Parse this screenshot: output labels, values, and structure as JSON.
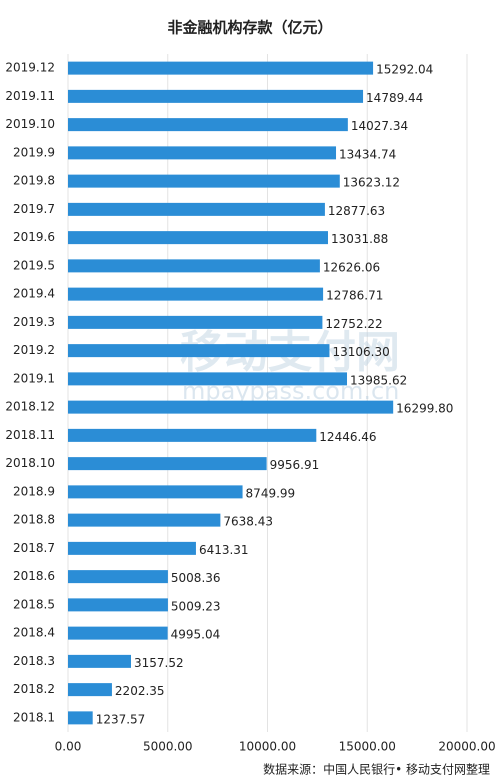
{
  "chart_data": {
    "type": "hbar",
    "title": "非金融机构存款（亿元）",
    "source": "数据来源：中国人民银行• 移动支付网整理",
    "watermark": [
      "移动支付网",
      "mpaypass.com.cn"
    ],
    "categories": [
      "2019.12",
      "2019.11",
      "2019.10",
      "2019.9",
      "2019.8",
      "2019.7",
      "2019.6",
      "2019.5",
      "2019.4",
      "2019.3",
      "2019.2",
      "2019.1",
      "2018.12",
      "2018.11",
      "2018.10",
      "2018.9",
      "2018.8",
      "2018.7",
      "2018.6",
      "2018.5",
      "2018.4",
      "2018.3",
      "2018.2",
      "2018.1"
    ],
    "values": [
      15292.04,
      14789.44,
      14027.34,
      13434.74,
      13623.12,
      12877.63,
      13031.88,
      12626.06,
      12786.71,
      12752.22,
      13106.3,
      13985.62,
      16299.8,
      12446.46,
      9956.91,
      8749.99,
      7638.43,
      6413.31,
      5008.36,
      5009.23,
      4995.04,
      3157.52,
      2202.35,
      1237.57
    ],
    "value_labels": [
      "15292.04",
      "14789.44",
      "14027.34",
      "13434.74",
      "13623.12",
      "12877.63",
      "13031.88",
      "12626.06",
      "12786.71",
      "12752.22",
      "13106.30",
      "13985.62",
      "16299.80",
      "12446.46",
      "9956.91",
      "8749.99",
      "7638.43",
      "6413.31",
      "5008.36",
      "5009.23",
      "4995.04",
      "3157.52",
      "2202.35",
      "1237.57"
    ],
    "color": "#2b8dd6",
    "xlim": [
      0,
      20000
    ],
    "xticks": [
      {
        "value": 0,
        "label": "0.00"
      },
      {
        "value": 5000,
        "label": "5000.00"
      },
      {
        "value": 10000,
        "label": "10000.00"
      },
      {
        "value": 15000,
        "label": "15000.00"
      },
      {
        "value": 20000,
        "label": "20000.00"
      }
    ],
    "grid": true
  }
}
